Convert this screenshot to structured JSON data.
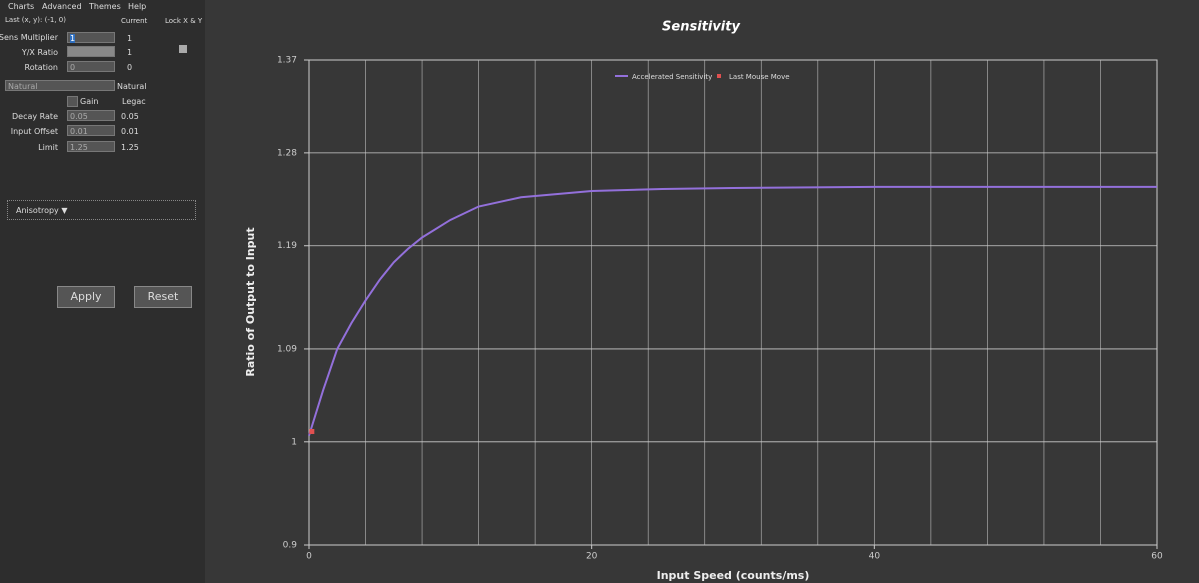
{
  "menu": [
    "Charts",
    "Advanced",
    "Themes",
    "Help"
  ],
  "header": {
    "last": "Last (x, y): (-1, 0)",
    "current": "Current",
    "lock": "Lock X & Y"
  },
  "rows": [
    {
      "label": "Sens Multiplier",
      "input": "1",
      "current": "1"
    },
    {
      "label": "Y/X Ratio",
      "current": "1"
    },
    {
      "label": "Rotation",
      "input": "0",
      "current": "0"
    }
  ],
  "mode": {
    "dropdown": "Natural",
    "current": "Natural",
    "gain": "Gain",
    "legacy": "Legac"
  },
  "params": [
    {
      "label": "Decay Rate",
      "input": "0.05",
      "current": "0.05"
    },
    {
      "label": "Input Offset",
      "input": "0.01",
      "current": "0.01"
    },
    {
      "label": "Limit",
      "input": "1.25",
      "current": "1.25"
    }
  ],
  "anisotropy": "Anisotropy ▼",
  "buttons": [
    "Apply",
    "Reset"
  ],
  "chart_data": {
    "type": "line",
    "title": "Sensitivity",
    "x_label": "Input Speed (counts/ms)",
    "y_label": "Ratio of Output to Input",
    "xlim": [
      0,
      60
    ],
    "xticks": [
      0,
      20,
      40,
      60
    ],
    "ylim": [
      0.9,
      1.37
    ],
    "yticks": [
      0.9,
      1,
      1.09,
      1.19,
      1.28,
      1.37
    ],
    "grid": true,
    "legend": "top",
    "series": [
      {
        "name": "Accelerated Sensitivity",
        "color": "#9370db",
        "x": [
          0,
          1,
          2,
          3,
          4,
          5,
          6,
          7,
          8,
          10,
          12,
          15,
          20,
          25,
          30,
          40,
          50,
          60
        ],
        "values": [
          1.006,
          1.05,
          1.09,
          1.115,
          1.137,
          1.157,
          1.174,
          1.187,
          1.198,
          1.215,
          1.228,
          1.237,
          1.243,
          1.245,
          1.246,
          1.247,
          1.247,
          1.247
        ]
      },
      {
        "name": "Last Mouse Move",
        "color": "#e05050",
        "x": [
          0.2
        ],
        "values": [
          1.01
        ]
      }
    ]
  }
}
